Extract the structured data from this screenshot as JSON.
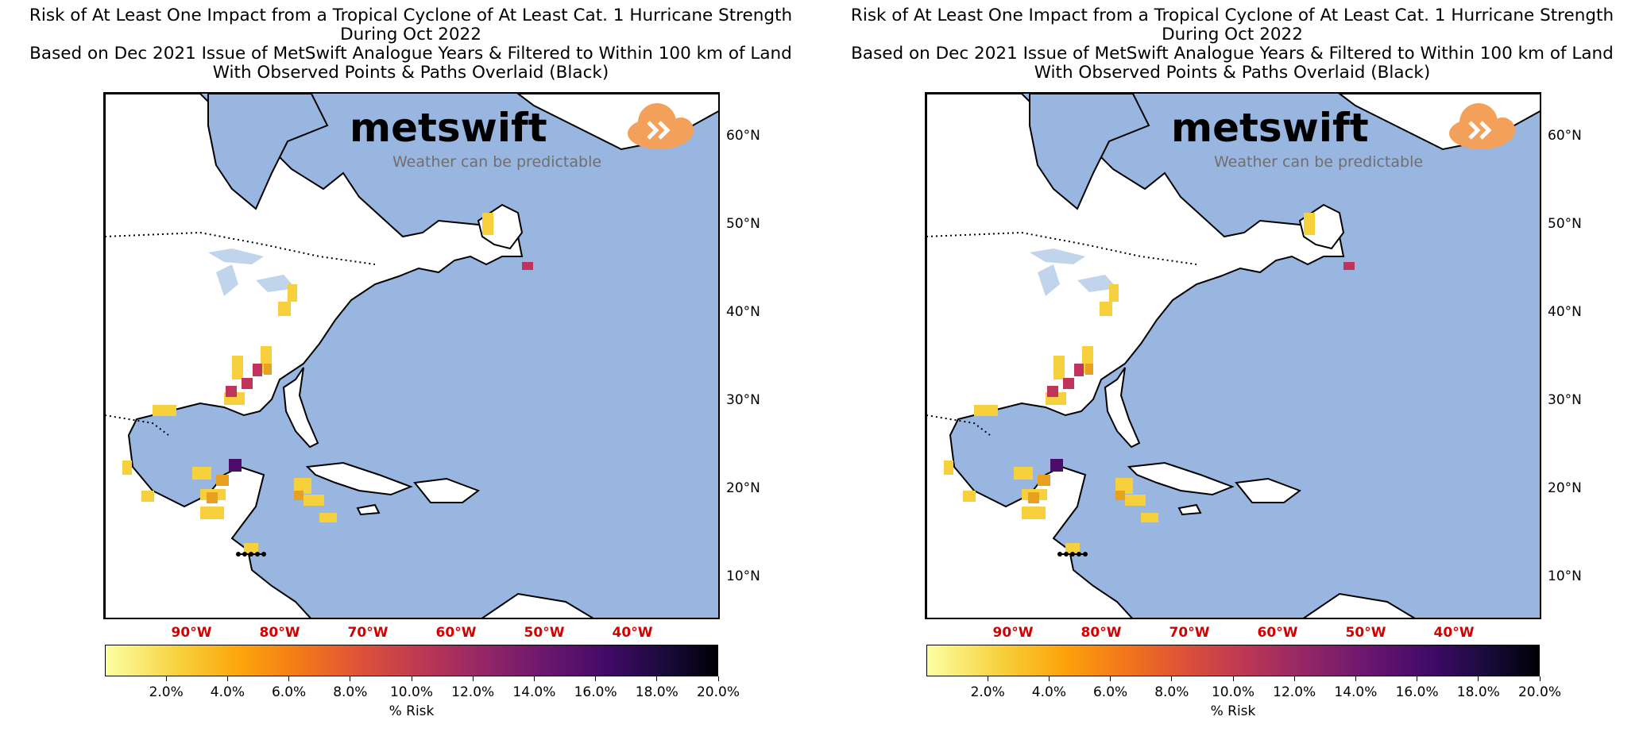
{
  "figures": [
    {
      "title_lines": [
        "Risk of At Least One Impact from a Tropical Cyclone of At Least Cat. 1 Hurricane Strength",
        "During Oct 2022",
        "Based on Dec 2021 Issue of MetSwift Analogue Years & Filtered to Within 100 km of Land",
        "With Observed Points & Paths Overlaid (Black)"
      ],
      "lat_labels": [
        "60°N",
        "50°N",
        "40°N",
        "30°N",
        "20°N",
        "10°N"
      ],
      "lon_labels": [
        "90°W",
        "80°W",
        "70°W",
        "60°W",
        "50°W",
        "40°W"
      ],
      "colorbar_ticks": [
        "2.0%",
        "4.0%",
        "6.0%",
        "8.0%",
        "10.0%",
        "12.0%",
        "14.0%",
        "16.0%",
        "18.0%",
        "20.0%"
      ],
      "colorbar_label": "% Risk",
      "logo": {
        "word": "metswift",
        "tagline": "Weather can be predictable"
      }
    },
    {
      "title_lines": [
        "Risk of At Least One Impact from a Tropical Cyclone of At Least Cat. 1 Hurricane Strength",
        "During Oct 2022",
        "Based on Dec 2021 Issue of MetSwift Analogue Years & Filtered to Within 100 km of Land",
        "With Observed Points & Paths Overlaid (Black)"
      ],
      "lat_labels": [
        "60°N",
        "50°N",
        "40°N",
        "30°N",
        "20°N",
        "10°N"
      ],
      "lon_labels": [
        "90°W",
        "80°W",
        "70°W",
        "60°W",
        "50°W",
        "40°W"
      ],
      "colorbar_ticks": [
        "2.0%",
        "4.0%",
        "6.0%",
        "8.0%",
        "10.0%",
        "12.0%",
        "14.0%",
        "16.0%",
        "18.0%",
        "20.0%"
      ],
      "colorbar_label": "% Risk",
      "logo": {
        "word": "metswift",
        "tagline": "Weather can be predictable"
      }
    }
  ],
  "colors": {
    "ocean": "#98b6e0",
    "land": "#ffffff",
    "lon_label": "#d40000",
    "logo_cloud": "#f2a05a",
    "risk_low": "#f7d13d",
    "risk_mid": "#e8a020",
    "risk_high": "#c0345c",
    "risk_max": "#4b0c6b"
  }
}
